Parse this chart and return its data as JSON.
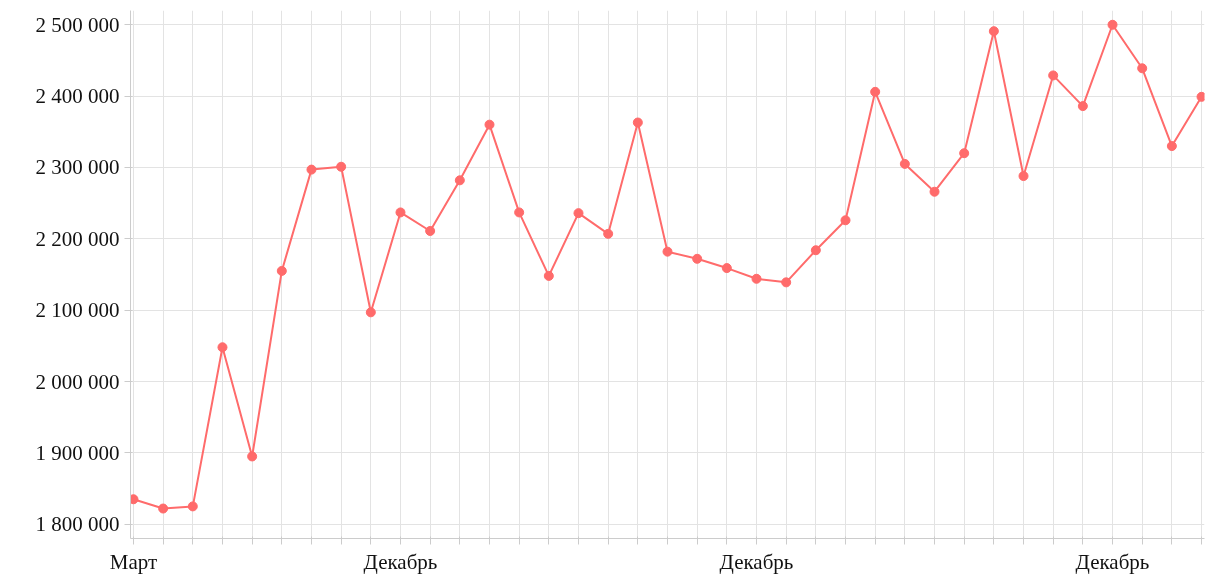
{
  "chart_data": {
    "type": "line",
    "categories": [
      "Март",
      null,
      null,
      null,
      null,
      null,
      null,
      null,
      null,
      "Декабрь",
      null,
      null,
      null,
      null,
      null,
      null,
      null,
      null,
      null,
      null,
      null,
      "Декабрь",
      null,
      null,
      null,
      null,
      null,
      null,
      null,
      null,
      null,
      null,
      null,
      "Декабрь",
      null,
      null,
      null
    ],
    "series": [
      {
        "color": "#ff6b6b",
        "values": [
          1835000,
          1822000,
          1825000,
          2048000,
          1895000,
          2155000,
          2297000,
          2301000,
          2097000,
          2237000,
          2211000,
          2282000,
          2360000,
          2237000,
          2148000,
          2236000,
          2207000,
          2363000,
          2182000,
          2172000,
          2159000,
          2144000,
          2139000,
          2184000,
          2226000,
          2406000,
          2305000,
          2266000,
          2320000,
          2491000,
          2288000,
          2429000,
          2386000,
          2500000,
          2439000,
          2330000,
          2399000
        ]
      }
    ],
    "ylim": [
      1780000,
      2520000
    ],
    "yticks": [
      {
        "value": 1800000,
        "label": "1 800 000"
      },
      {
        "value": 1900000,
        "label": "1 900 000"
      },
      {
        "value": 2000000,
        "label": "2 000 000"
      },
      {
        "value": 2100000,
        "label": "2 100 000"
      },
      {
        "value": 2200000,
        "label": "2 200 000"
      },
      {
        "value": 2300000,
        "label": "2 300 000"
      },
      {
        "value": 2400000,
        "label": "2 400 000"
      },
      {
        "value": 2500000,
        "label": "2 500 000"
      }
    ],
    "grid": true,
    "marker": "circle",
    "line_style": "solid"
  }
}
